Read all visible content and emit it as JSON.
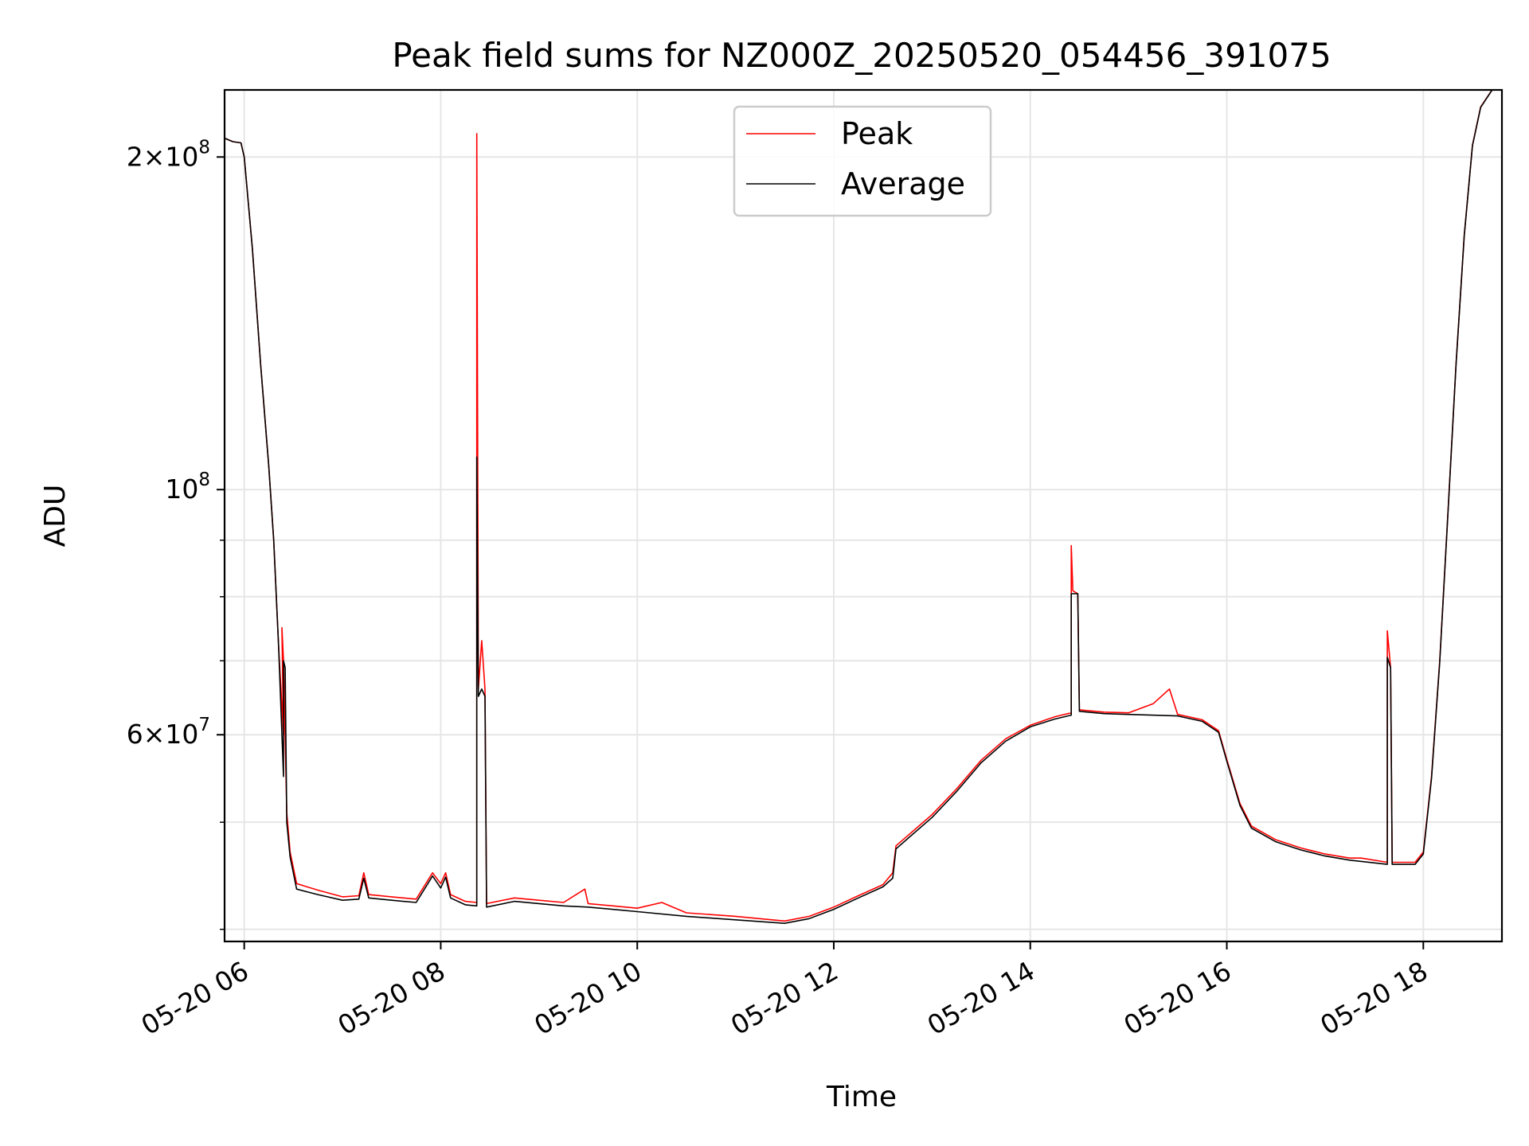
{
  "chart_data": {
    "type": "line",
    "title": "Peak field sums for NZ000Z_20250520_054456_391075",
    "xlabel": "Time",
    "ylabel": "ADU",
    "x_axis_type": "time",
    "xlim": [
      "2025-05-20 05:48",
      "2025-05-20 18:48"
    ],
    "ylim": [
      39000000,
      230000000
    ],
    "y_scale": "log",
    "grid": true,
    "legend_position": "top-center",
    "x_ticks": [
      {
        "t": "2025-05-20 06:00",
        "label": "05-20 06"
      },
      {
        "t": "2025-05-20 08:00",
        "label": "05-20 08"
      },
      {
        "t": "2025-05-20 10:00",
        "label": "05-20 10"
      },
      {
        "t": "2025-05-20 12:00",
        "label": "05-20 12"
      },
      {
        "t": "2025-05-20 14:00",
        "label": "05-20 14"
      },
      {
        "t": "2025-05-20 16:00",
        "label": "05-20 16"
      },
      {
        "t": "2025-05-20 18:00",
        "label": "05-20 18"
      }
    ],
    "y_major_ticks": [
      {
        "value": 60000000,
        "mantissa": "6",
        "exp": "7"
      },
      {
        "value": 100000000,
        "mantissa": "",
        "exp": "8"
      },
      {
        "value": 200000000,
        "mantissa": "2",
        "exp": "8"
      }
    ],
    "y_minor_ticks": [
      40000000,
      50000000,
      70000000,
      80000000,
      90000000
    ],
    "series": [
      {
        "name": "Peak",
        "color": "#ff0000",
        "points": [
          [
            "2025-05-20 05:48",
            208000000
          ],
          [
            "2025-05-20 05:53",
            206500000
          ],
          [
            "2025-05-20 05:58",
            206000000
          ],
          [
            "2025-05-20 06:00",
            200000000
          ],
          [
            "2025-05-20 06:05",
            165000000
          ],
          [
            "2025-05-20 06:10",
            130000000
          ],
          [
            "2025-05-20 06:15",
            105000000
          ],
          [
            "2025-05-20 06:18",
            90000000
          ],
          [
            "2025-05-20 06:21",
            72000000
          ],
          [
            "2025-05-20 06:24",
            60000000
          ],
          [
            "2025-05-20 06:23",
            75000000
          ],
          [
            "2025-05-20 06:24",
            70000000
          ],
          [
            "2025-05-20 06:26",
            51000000
          ],
          [
            "2025-05-20 06:28",
            47000000
          ],
          [
            "2025-05-20 06:32",
            44000000
          ],
          [
            "2025-05-20 06:45",
            43400000
          ],
          [
            "2025-05-20 07:00",
            42800000
          ],
          [
            "2025-05-20 07:10",
            42900000
          ],
          [
            "2025-05-20 07:13",
            45000000
          ],
          [
            "2025-05-20 07:16",
            43000000
          ],
          [
            "2025-05-20 07:30",
            42800000
          ],
          [
            "2025-05-20 07:45",
            42600000
          ],
          [
            "2025-05-20 07:55",
            45000000
          ],
          [
            "2025-05-20 08:00",
            44000000
          ],
          [
            "2025-05-20 08:03",
            45000000
          ],
          [
            "2025-05-20 08:06",
            43000000
          ],
          [
            "2025-05-20 08:15",
            42400000
          ],
          [
            "2025-05-20 08:22",
            42300000
          ],
          [
            "2025-05-20 08:22",
            210000000
          ],
          [
            "2025-05-20 08:23",
            66000000
          ],
          [
            "2025-05-20 08:25",
            73000000
          ],
          [
            "2025-05-20 08:27",
            66000000
          ],
          [
            "2025-05-20 08:28",
            42200000
          ],
          [
            "2025-05-20 08:45",
            42700000
          ],
          [
            "2025-05-20 09:00",
            42500000
          ],
          [
            "2025-05-20 09:15",
            42300000
          ],
          [
            "2025-05-20 09:28",
            43500000
          ],
          [
            "2025-05-20 09:30",
            42200000
          ],
          [
            "2025-05-20 10:00",
            41800000
          ],
          [
            "2025-05-20 10:15",
            42300000
          ],
          [
            "2025-05-20 10:30",
            41400000
          ],
          [
            "2025-05-20 11:00",
            41100000
          ],
          [
            "2025-05-20 11:30",
            40700000
          ],
          [
            "2025-05-20 11:45",
            41100000
          ],
          [
            "2025-05-20 12:00",
            41900000
          ],
          [
            "2025-05-20 12:15",
            42900000
          ],
          [
            "2025-05-20 12:30",
            43900000
          ],
          [
            "2025-05-20 12:36",
            45000000
          ],
          [
            "2025-05-20 12:38",
            47600000
          ],
          [
            "2025-05-20 12:45",
            48600000
          ],
          [
            "2025-05-20 13:00",
            50800000
          ],
          [
            "2025-05-20 13:15",
            53600000
          ],
          [
            "2025-05-20 13:30",
            56900000
          ],
          [
            "2025-05-20 13:45",
            59500000
          ],
          [
            "2025-05-20 14:00",
            61200000
          ],
          [
            "2025-05-20 14:15",
            62300000
          ],
          [
            "2025-05-20 14:25",
            62800000
          ],
          [
            "2025-05-20 14:25",
            89000000
          ],
          [
            "2025-05-20 14:26",
            81000000
          ],
          [
            "2025-05-20 14:29",
            80500000
          ],
          [
            "2025-05-20 14:30",
            63200000
          ],
          [
            "2025-05-20 14:45",
            62900000
          ],
          [
            "2025-05-20 15:00",
            62800000
          ],
          [
            "2025-05-20 15:15",
            64000000
          ],
          [
            "2025-05-20 15:25",
            66000000
          ],
          [
            "2025-05-20 15:30",
            62600000
          ],
          [
            "2025-05-20 15:45",
            61900000
          ],
          [
            "2025-05-20 15:55",
            60500000
          ],
          [
            "2025-05-20 16:00",
            57000000
          ],
          [
            "2025-05-20 16:08",
            52000000
          ],
          [
            "2025-05-20 16:15",
            49600000
          ],
          [
            "2025-05-20 16:30",
            48200000
          ],
          [
            "2025-05-20 16:45",
            47400000
          ],
          [
            "2025-05-20 17:00",
            46800000
          ],
          [
            "2025-05-20 17:15",
            46400000
          ],
          [
            "2025-05-20 17:22",
            46400000
          ],
          [
            "2025-05-20 17:38",
            46000000
          ],
          [
            "2025-05-20 17:38",
            74500000
          ],
          [
            "2025-05-20 17:40",
            69000000
          ],
          [
            "2025-05-20 17:41",
            46000000
          ],
          [
            "2025-05-20 17:55",
            46000000
          ],
          [
            "2025-05-20 18:00",
            47000000
          ],
          [
            "2025-05-20 18:05",
            55000000
          ],
          [
            "2025-05-20 18:10",
            70000000
          ],
          [
            "2025-05-20 18:15",
            95000000
          ],
          [
            "2025-05-20 18:20",
            130000000
          ],
          [
            "2025-05-20 18:25",
            170000000
          ],
          [
            "2025-05-20 18:30",
            205000000
          ],
          [
            "2025-05-20 18:35",
            222000000
          ],
          [
            "2025-05-20 18:42",
            230000000
          ]
        ]
      },
      {
        "name": "Average",
        "color": "#000000",
        "points": [
          [
            "2025-05-20 05:48",
            208000000
          ],
          [
            "2025-05-20 05:53",
            206500000
          ],
          [
            "2025-05-20 05:58",
            206000000
          ],
          [
            "2025-05-20 06:00",
            200000000
          ],
          [
            "2025-05-20 06:05",
            165000000
          ],
          [
            "2025-05-20 06:10",
            130000000
          ],
          [
            "2025-05-20 06:15",
            105000000
          ],
          [
            "2025-05-20 06:18",
            90000000
          ],
          [
            "2025-05-20 06:21",
            72000000
          ],
          [
            "2025-05-20 06:24",
            55000000
          ],
          [
            "2025-05-20 06:24",
            70000000
          ],
          [
            "2025-05-20 06:25",
            69000000
          ],
          [
            "2025-05-20 06:26",
            50000000
          ],
          [
            "2025-05-20 06:28",
            46500000
          ],
          [
            "2025-05-20 06:32",
            43500000
          ],
          [
            "2025-05-20 06:45",
            43000000
          ],
          [
            "2025-05-20 07:00",
            42500000
          ],
          [
            "2025-05-20 07:10",
            42600000
          ],
          [
            "2025-05-20 07:13",
            44500000
          ],
          [
            "2025-05-20 07:16",
            42700000
          ],
          [
            "2025-05-20 07:30",
            42500000
          ],
          [
            "2025-05-20 07:45",
            42300000
          ],
          [
            "2025-05-20 07:55",
            44700000
          ],
          [
            "2025-05-20 08:00",
            43600000
          ],
          [
            "2025-05-20 08:03",
            44600000
          ],
          [
            "2025-05-20 08:06",
            42700000
          ],
          [
            "2025-05-20 08:15",
            42100000
          ],
          [
            "2025-05-20 08:22",
            42000000
          ],
          [
            "2025-05-20 08:22",
            107000000
          ],
          [
            "2025-05-20 08:23",
            65000000
          ],
          [
            "2025-05-20 08:25",
            66000000
          ],
          [
            "2025-05-20 08:27",
            65000000
          ],
          [
            "2025-05-20 08:28",
            41900000
          ],
          [
            "2025-05-20 08:45",
            42400000
          ],
          [
            "2025-05-20 09:00",
            42200000
          ],
          [
            "2025-05-20 09:15",
            42000000
          ],
          [
            "2025-05-20 09:30",
            41900000
          ],
          [
            "2025-05-20 10:00",
            41500000
          ],
          [
            "2025-05-20 10:30",
            41100000
          ],
          [
            "2025-05-20 11:00",
            40800000
          ],
          [
            "2025-05-20 11:30",
            40500000
          ],
          [
            "2025-05-20 11:45",
            40900000
          ],
          [
            "2025-05-20 12:00",
            41700000
          ],
          [
            "2025-05-20 12:15",
            42700000
          ],
          [
            "2025-05-20 12:30",
            43700000
          ],
          [
            "2025-05-20 12:36",
            44500000
          ],
          [
            "2025-05-20 12:38",
            47300000
          ],
          [
            "2025-05-20 12:45",
            48300000
          ],
          [
            "2025-05-20 13:00",
            50500000
          ],
          [
            "2025-05-20 13:15",
            53300000
          ],
          [
            "2025-05-20 13:30",
            56600000
          ],
          [
            "2025-05-20 13:45",
            59200000
          ],
          [
            "2025-05-20 14:00",
            61000000
          ],
          [
            "2025-05-20 14:15",
            62000000
          ],
          [
            "2025-05-20 14:25",
            62500000
          ],
          [
            "2025-05-20 14:25",
            80500000
          ],
          [
            "2025-05-20 14:29",
            80500000
          ],
          [
            "2025-05-20 14:30",
            63000000
          ],
          [
            "2025-05-20 14:45",
            62700000
          ],
          [
            "2025-05-20 15:00",
            62600000
          ],
          [
            "2025-05-20 15:30",
            62400000
          ],
          [
            "2025-05-20 15:45",
            61700000
          ],
          [
            "2025-05-20 15:55",
            60300000
          ],
          [
            "2025-05-20 16:00",
            56800000
          ],
          [
            "2025-05-20 16:08",
            51800000
          ],
          [
            "2025-05-20 16:15",
            49400000
          ],
          [
            "2025-05-20 16:30",
            48000000
          ],
          [
            "2025-05-20 16:45",
            47200000
          ],
          [
            "2025-05-20 17:00",
            46600000
          ],
          [
            "2025-05-20 17:15",
            46200000
          ],
          [
            "2025-05-20 17:38",
            45800000
          ],
          [
            "2025-05-20 17:38",
            70500000
          ],
          [
            "2025-05-20 17:40",
            69000000
          ],
          [
            "2025-05-20 17:41",
            45800000
          ],
          [
            "2025-05-20 17:55",
            45800000
          ],
          [
            "2025-05-20 18:00",
            46800000
          ],
          [
            "2025-05-20 18:05",
            54800000
          ],
          [
            "2025-05-20 18:10",
            69800000
          ],
          [
            "2025-05-20 18:15",
            94800000
          ],
          [
            "2025-05-20 18:20",
            129800000
          ],
          [
            "2025-05-20 18:25",
            169800000
          ],
          [
            "2025-05-20 18:30",
            204800000
          ],
          [
            "2025-05-20 18:35",
            221800000
          ],
          [
            "2025-05-20 18:42",
            230000000
          ]
        ]
      }
    ]
  }
}
